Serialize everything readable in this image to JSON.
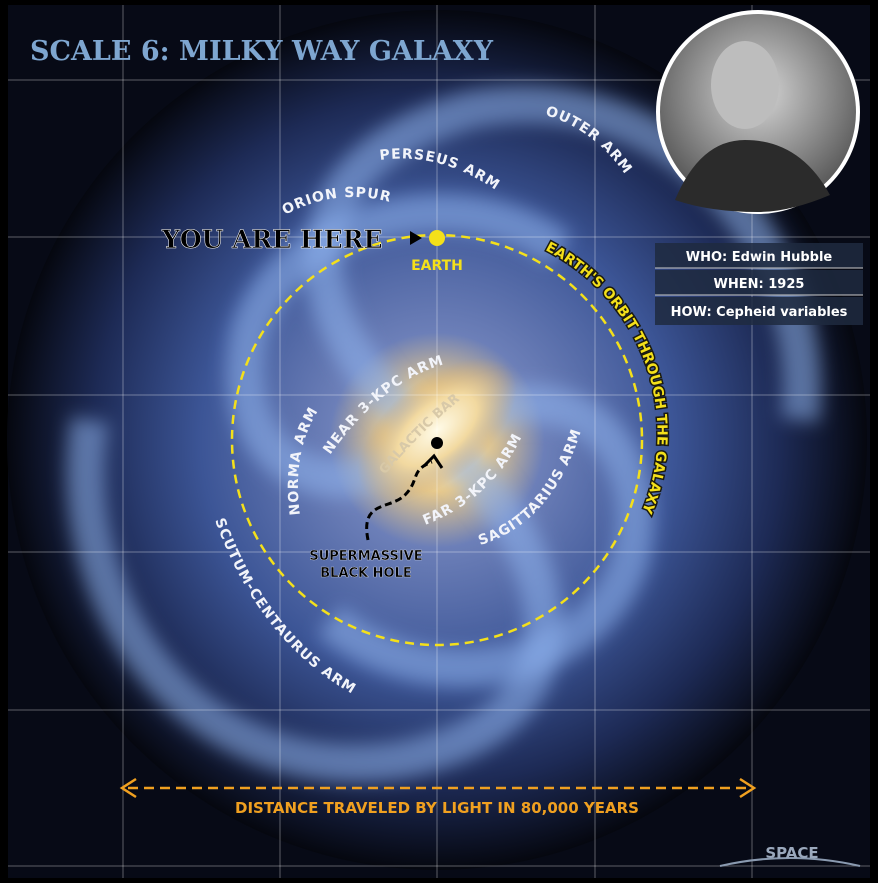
{
  "header": {
    "title": "SCALE 6: MILKY WAY GALAXY"
  },
  "labels": {
    "you_are_here": "YOU ARE HERE",
    "earth": "EARTH",
    "orion_spur": "ORION SPUR",
    "perseus_arm": "PERSEUS ARM",
    "outer_arm": "OUTER ARM",
    "orbit": "EARTH'S ORBIT THROUGH THE GALAXY",
    "near_arm": "NEAR 3-KPC ARM",
    "galactic_bar": "GALACTIC BAR",
    "norma_arm": "NORMA ARM",
    "far_arm": "FAR 3-KPC ARM",
    "sagittarius_arm": "SAGITTARIUS ARM",
    "black_hole": [
      "SUPERMASSIVE",
      "BLACK HOLE"
    ],
    "scutum_arm": "SCUTUM-CENTAURUS ARM",
    "distance": "DISTANCE TRAVELED BY LIGHT IN 80,000 YEARS"
  },
  "info": {
    "who": "WHO: Edwin Hubble",
    "when": "WHEN: 1925",
    "how": "HOW: Cepheid variables"
  },
  "logo": "SPACE"
}
